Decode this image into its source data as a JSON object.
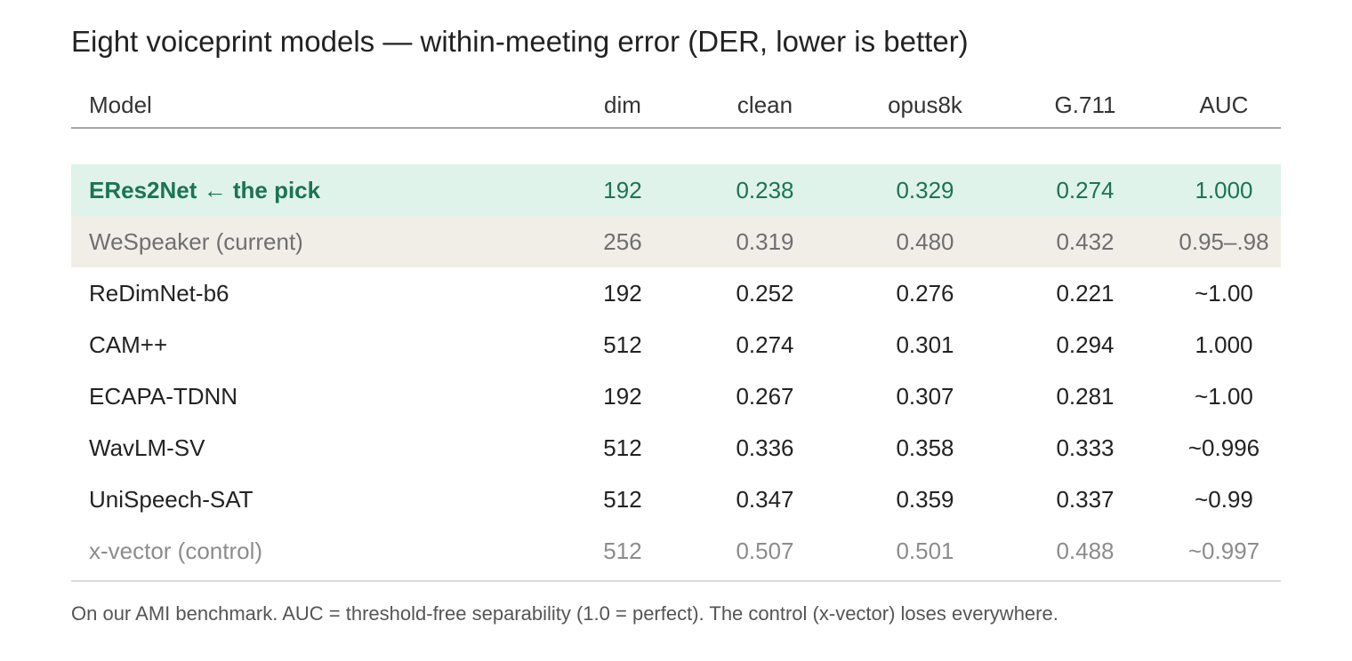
{
  "chart_data": {
    "type": "table",
    "title": "Eight voiceprint models — within-meeting error (DER, lower is better)",
    "columns": [
      "Model",
      "dim",
      "clean",
      "opus8k",
      "G.711",
      "AUC"
    ],
    "rows": [
      {
        "model": "ERes2Net ← the pick",
        "dim": "192",
        "clean": "0.238",
        "opus8k": "0.329",
        "g711": "0.274",
        "auc": "1.000",
        "style": "pick"
      },
      {
        "model": "WeSpeaker (current)",
        "dim": "256",
        "clean": "0.319",
        "opus8k": "0.480",
        "g711": "0.432",
        "auc": "0.95–.98",
        "style": "current"
      },
      {
        "model": "ReDimNet-b6",
        "dim": "192",
        "clean": "0.252",
        "opus8k": "0.276",
        "g711": "0.221",
        "auc": "~1.00",
        "style": "normal"
      },
      {
        "model": "CAM++",
        "dim": "512",
        "clean": "0.274",
        "opus8k": "0.301",
        "g711": "0.294",
        "auc": "1.000",
        "style": "normal"
      },
      {
        "model": "ECAPA-TDNN",
        "dim": "192",
        "clean": "0.267",
        "opus8k": "0.307",
        "g711": "0.281",
        "auc": "~1.00",
        "style": "normal"
      },
      {
        "model": "WavLM-SV",
        "dim": "512",
        "clean": "0.336",
        "opus8k": "0.358",
        "g711": "0.333",
        "auc": "~0.996",
        "style": "normal"
      },
      {
        "model": "UniSpeech-SAT",
        "dim": "512",
        "clean": "0.347",
        "opus8k": "0.359",
        "g711": "0.337",
        "auc": "~0.99",
        "style": "normal"
      },
      {
        "model": "x-vector (control)",
        "dim": "512",
        "clean": "0.507",
        "opus8k": "0.501",
        "g711": "0.488",
        "auc": "~0.997",
        "style": "control"
      }
    ],
    "footnote": "On our AMI benchmark. AUC = threshold-free separability (1.0 = perfect). The control (x-vector) loses everywhere."
  },
  "colors": {
    "pick_bg": "#e0f3ea",
    "pick_text": "#1a7552",
    "current_bg": "#f1eee8",
    "current_text": "#6f6f6f",
    "control_text": "#8c8c8c"
  }
}
